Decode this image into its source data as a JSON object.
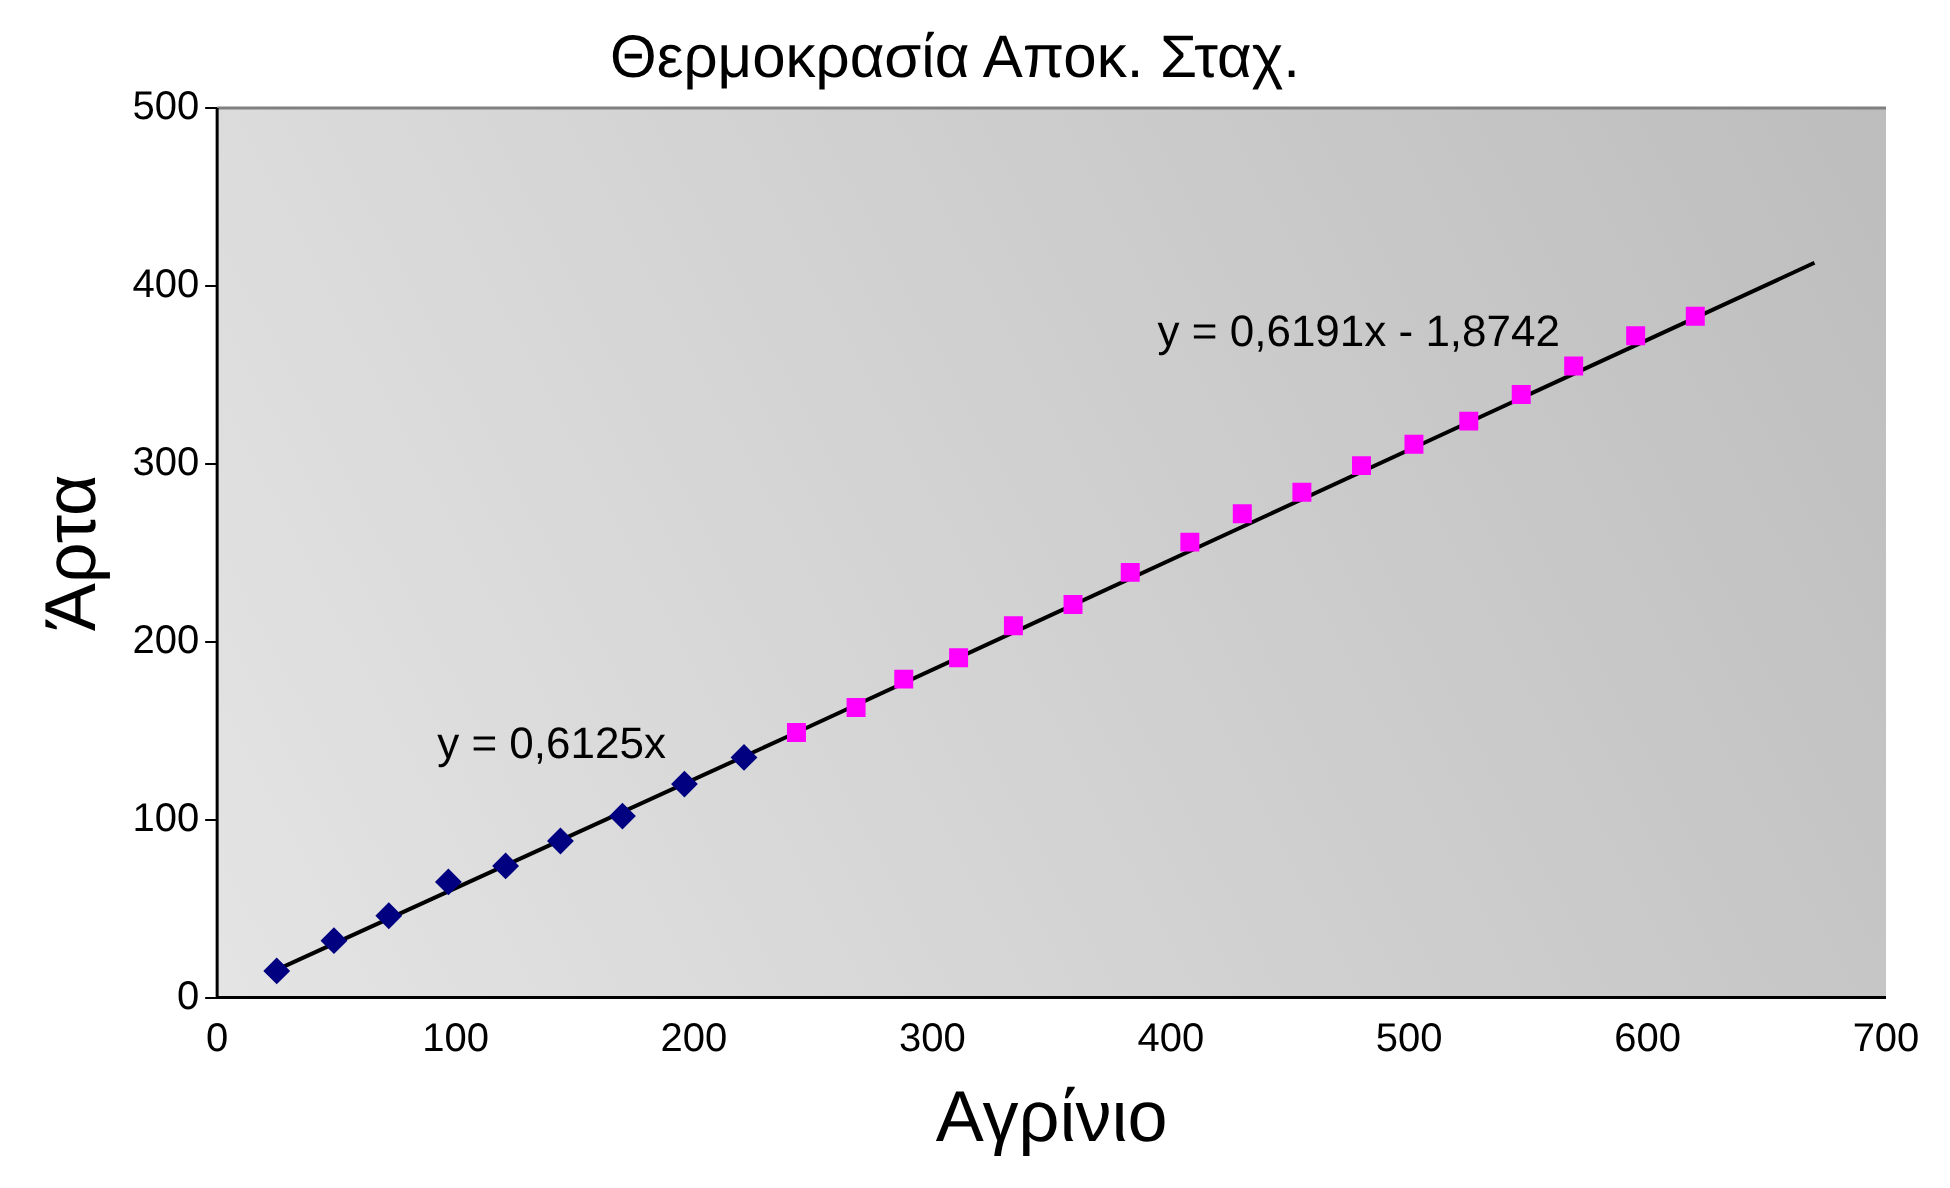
{
  "chart_data": {
    "type": "scatter",
    "title": "Θερμοκρασία Αποκ. Σταχ.",
    "xlabel": "Αγρίνιο",
    "ylabel": "Άρτα",
    "xlim": [
      0,
      700
    ],
    "xticks": [
      0,
      100,
      200,
      300,
      400,
      500,
      600,
      700
    ],
    "ylim": [
      0,
      500
    ],
    "yticks": [
      0,
      100,
      200,
      300,
      400,
      500
    ],
    "grid": false,
    "legend": false,
    "series": [
      {
        "marker": "diamond",
        "color": "#000080",
        "x": [
          25,
          49,
          72,
          97,
          121,
          144,
          170,
          196,
          221
        ],
        "values": [
          15,
          32,
          46,
          65,
          74,
          88,
          102,
          120,
          135
        ]
      },
      {
        "marker": "square",
        "color": "#ff00ff",
        "x": [
          243,
          268,
          288,
          311,
          334,
          359,
          383,
          408,
          430,
          455,
          480,
          502,
          525,
          547,
          569,
          595,
          620
        ],
        "values": [
          149,
          163,
          179,
          191,
          209,
          221,
          239,
          256,
          272,
          284,
          299,
          311,
          324,
          339,
          355,
          372,
          383
        ]
      },
      {
        "type": "line",
        "marker": "none",
        "line_style": "solid",
        "color": "#000000",
        "x": [
          24,
          243
        ],
        "values": [
          15,
          149
        ]
      },
      {
        "type": "line",
        "marker": "none",
        "line_style": "solid",
        "color": "#000000",
        "x": [
          243,
          670
        ],
        "values": [
          149,
          413
        ]
      }
    ],
    "annotations": [
      "y = 0,6125x",
      "y = 0,6191x - 1,8742"
    ]
  }
}
